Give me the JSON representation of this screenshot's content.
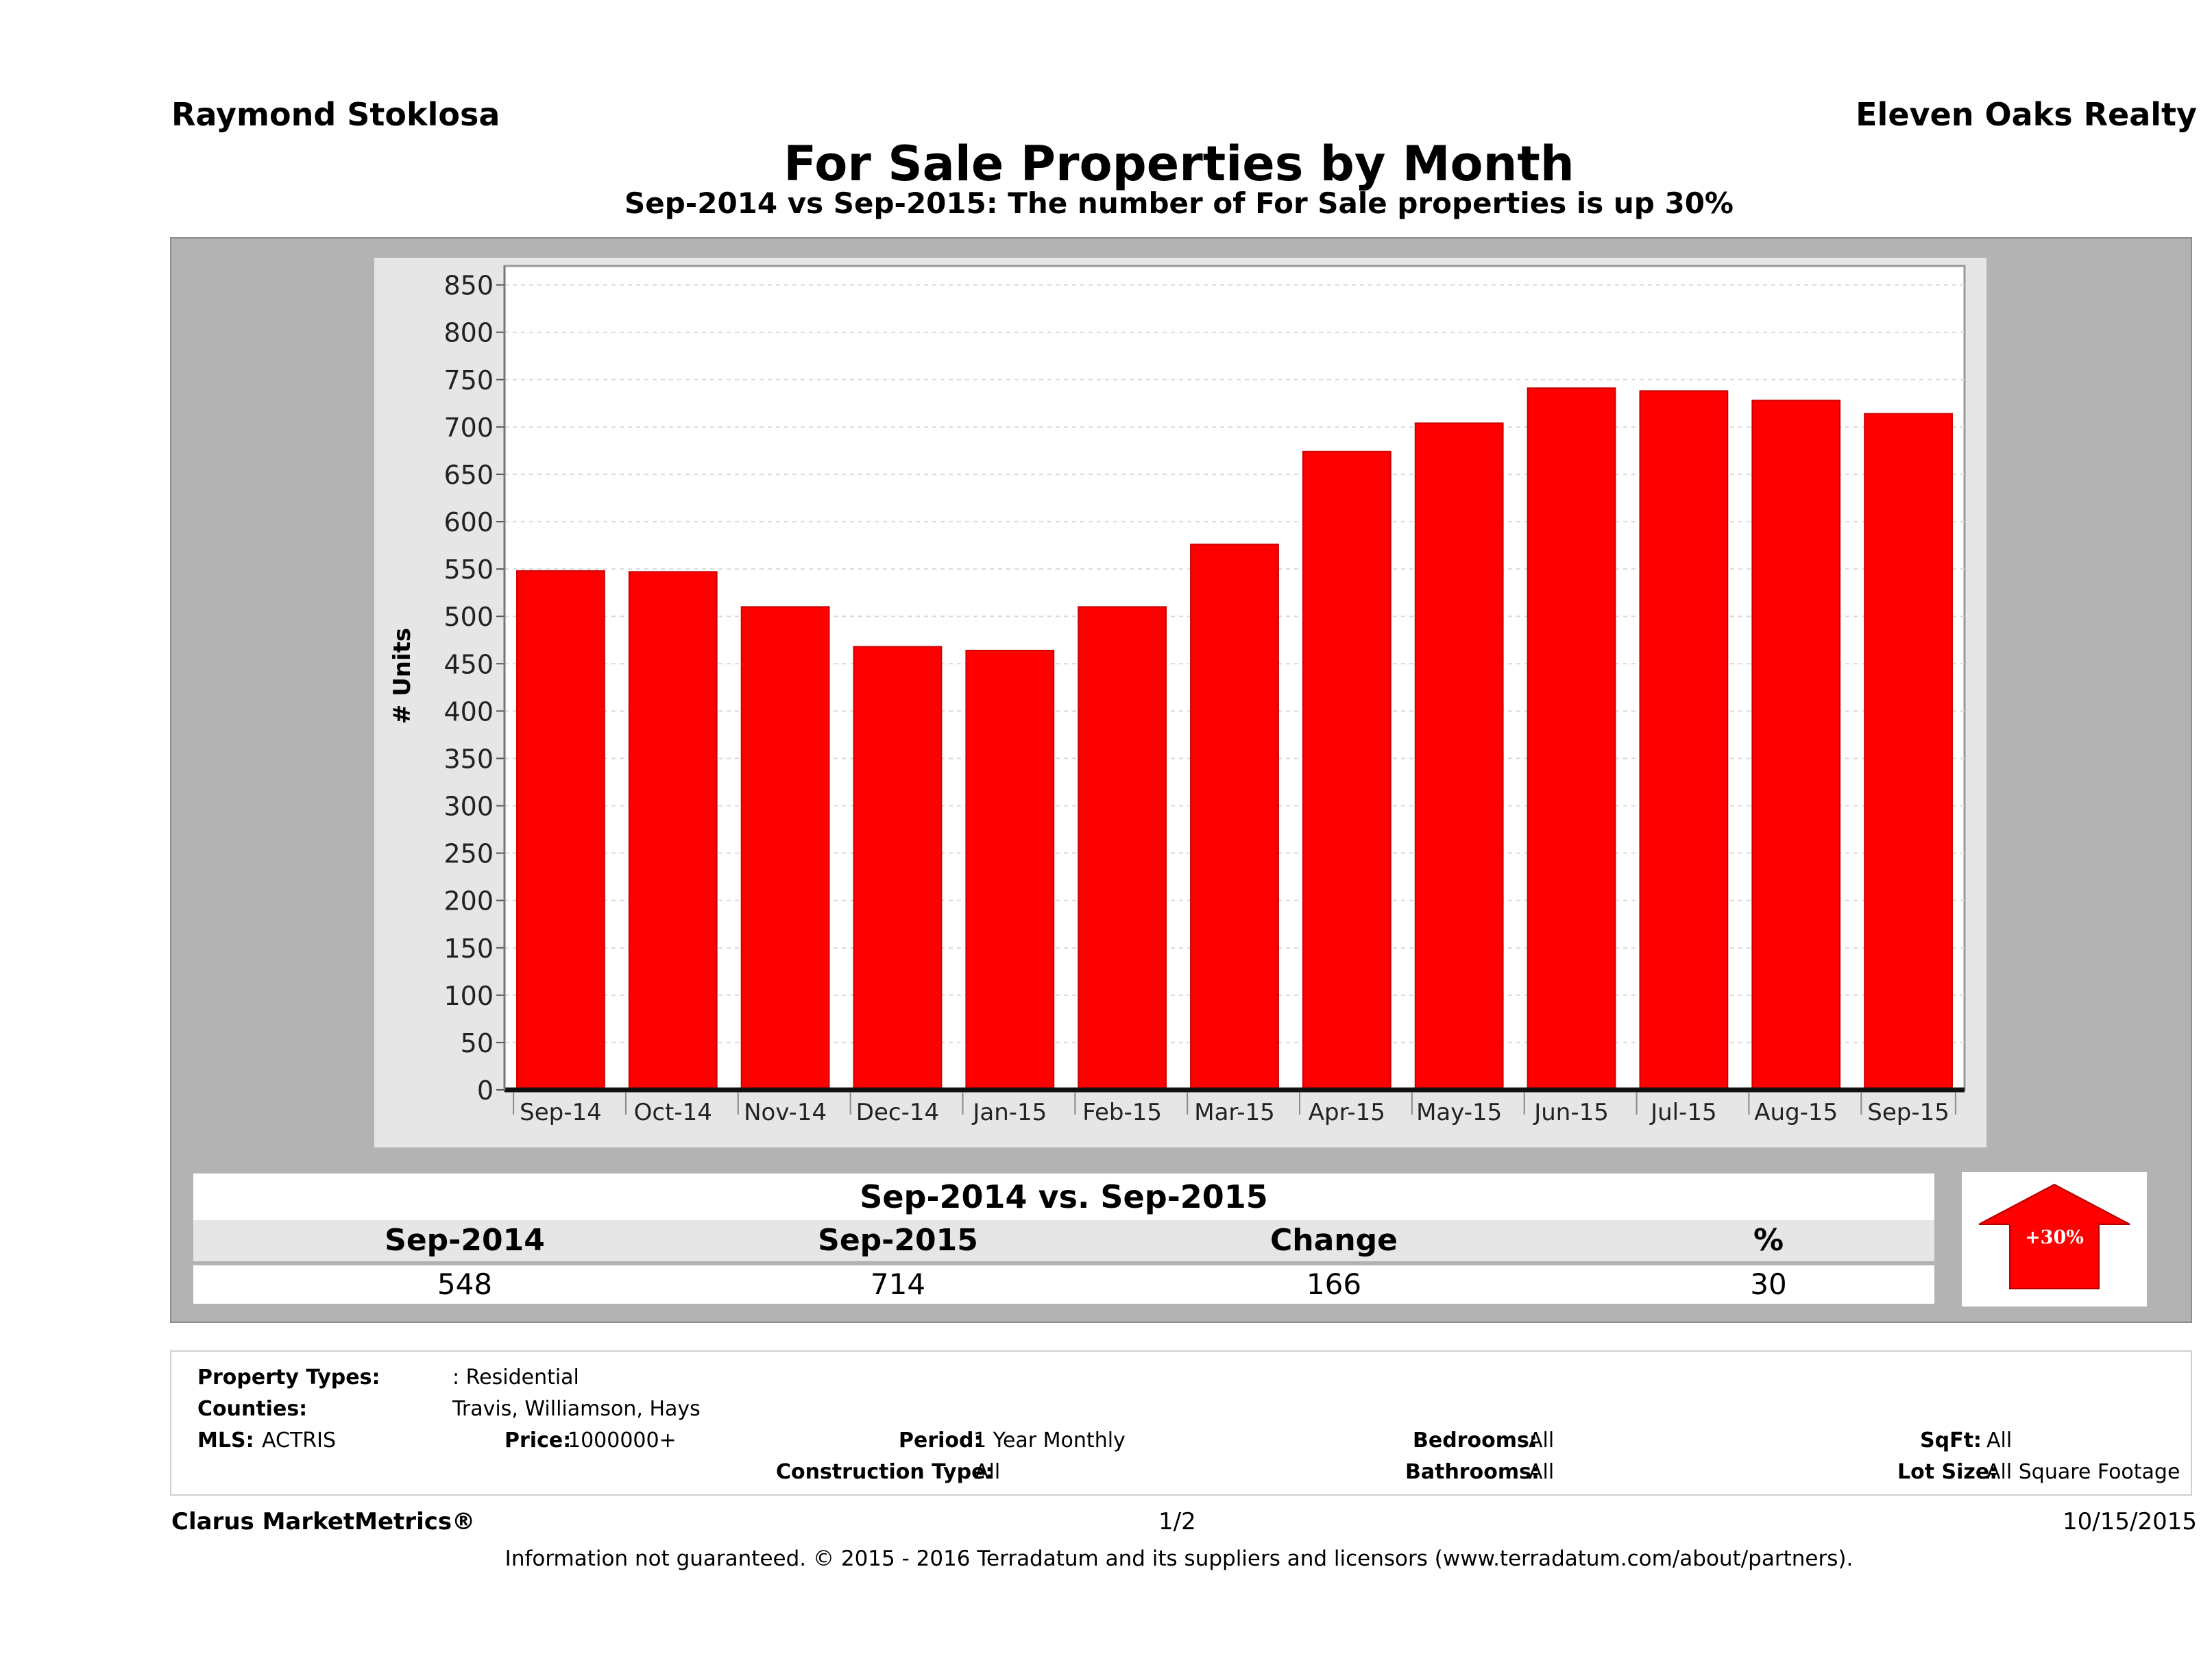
{
  "header": {
    "agent": "Raymond Stoklosa",
    "brokerage": "Eleven Oaks Realty",
    "title": "For Sale Properties by Month",
    "subtitle": "Sep-2014 vs Sep-2015: The number of For Sale  properties is up 30%"
  },
  "chart_data": {
    "type": "bar",
    "categories": [
      "Sep-14",
      "Oct-14",
      "Nov-14",
      "Dec-14",
      "Jan-15",
      "Feb-15",
      "Mar-15",
      "Apr-15",
      "May-15",
      "Jun-15",
      "Jul-15",
      "Aug-15",
      "Sep-15"
    ],
    "series": [
      {
        "values": [
          548,
          547,
          510,
          468,
          464,
          510,
          576,
          674,
          704,
          741,
          738,
          728,
          714
        ]
      }
    ],
    "ylabel": "# Units",
    "xlabel": "",
    "ylim": [
      0,
      870
    ],
    "yticks": [
      0,
      50,
      100,
      150,
      200,
      250,
      300,
      350,
      400,
      450,
      500,
      550,
      600,
      650,
      700,
      750,
      800,
      850
    ],
    "grid": true,
    "bar_color": "#ff0000"
  },
  "comparison": {
    "heading": "Sep-2014 vs. Sep-2015",
    "labels": {
      "a": "Sep-2014",
      "b": "Sep-2015",
      "change": "Change",
      "pct": "%"
    },
    "values": {
      "a": "548",
      "b": "714",
      "change": "166",
      "pct": "30"
    },
    "badge": "+30%",
    "badge_icon": "up-arrow-icon",
    "badge_color": "#ff0000"
  },
  "criteria": {
    "property_types_label": "Property Types:",
    "property_types": ": Residential",
    "counties_label": "Counties:",
    "counties": "Travis, Williamson, Hays",
    "mls_label": "MLS:",
    "mls": "ACTRIS",
    "price_label": "Price:",
    "price": "1000000+",
    "period_label": "Period:",
    "period": "1 Year Monthly",
    "construction_label": "Construction Type:",
    "construction": "All",
    "bedrooms_label": "Bedrooms:",
    "bedrooms": "All",
    "bathrooms_label": "Bathrooms:",
    "bathrooms": "All",
    "sqft_label": "SqFt:",
    "sqft": "All",
    "lot_label": "Lot Size:",
    "lot": "All Square Footage"
  },
  "footer": {
    "brand": "Clarus MarketMetrics®",
    "page": "1/2",
    "date": "10/15/2015",
    "disclaimer": "Information not guaranteed. © 2015 - 2016 Terradatum and its suppliers and licensors (www.terradatum.com/about/partners)."
  }
}
